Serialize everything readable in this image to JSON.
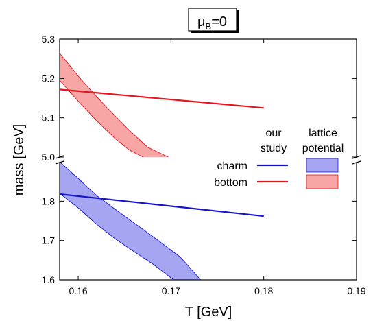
{
  "chart_data": {
    "type": "line",
    "title": "μ",
    "title_sub": "B",
    "title_suffix": "=0",
    "xlabel": "T [GeV]",
    "ylabel": "mass [GeV]",
    "xlim": [
      0.158,
      0.19
    ],
    "x_ticks": [
      0.16,
      0.17,
      0.18,
      0.19
    ],
    "x_tick_labels": [
      "0.16",
      "0.17",
      "0.18",
      "0.19"
    ],
    "upper_panel": {
      "ylim": [
        5.0,
        5.3
      ],
      "y_ticks": [
        5.0,
        5.1,
        5.2,
        5.3
      ],
      "y_tick_labels": [
        "5.0",
        "5.1",
        "5.2",
        "5.3"
      ]
    },
    "lower_panel": {
      "ylim": [
        1.6,
        1.9
      ],
      "y_ticks": [
        1.6,
        1.7,
        1.8
      ],
      "y_tick_labels": [
        "1.6",
        "1.7",
        "1.8"
      ]
    },
    "grid": false,
    "legend": {
      "col1_header": [
        "our",
        "study"
      ],
      "col2_header": [
        "lattice",
        "potential"
      ],
      "rows": [
        "charm",
        "bottom"
      ]
    },
    "series": [
      {
        "name": "bottom",
        "kind": "line",
        "panel": "upper",
        "color": "#e8141c",
        "x": [
          0.158,
          0.18
        ],
        "y": [
          5.172,
          5.125
        ]
      },
      {
        "name": "charm",
        "kind": "line",
        "panel": "lower",
        "color": "#1414cc",
        "x": [
          0.158,
          0.18
        ],
        "y": [
          1.818,
          1.762
        ]
      },
      {
        "name": "bottom",
        "kind": "band",
        "panel": "upper",
        "fill": "#f7a5a5",
        "stroke": "#e8141c",
        "x_upper": [
          0.158,
          0.1605,
          0.163,
          0.1655,
          0.1675,
          0.1697
        ],
        "y_upper": [
          5.264,
          5.192,
          5.128,
          5.068,
          5.025,
          5.0
        ],
        "x_lower": [
          0.158,
          0.16,
          0.162,
          0.164,
          0.1655,
          0.167
        ],
        "y_lower": [
          5.195,
          5.142,
          5.092,
          5.047,
          5.018,
          5.0
        ]
      },
      {
        "name": "charm",
        "kind": "band",
        "panel": "lower",
        "fill": "#a5a5f2",
        "stroke": "#1414cc",
        "x_upper": [
          0.158,
          0.16,
          0.162,
          0.165,
          0.168,
          0.171,
          0.1732
        ],
        "y_upper": [
          1.9,
          1.858,
          1.814,
          1.762,
          1.711,
          1.658,
          1.6
        ],
        "x_lower": [
          0.158,
          0.16,
          0.162,
          0.164,
          0.166,
          0.168,
          0.1703
        ],
        "y_lower": [
          1.82,
          1.783,
          1.741,
          1.704,
          1.672,
          1.641,
          1.6
        ]
      }
    ]
  }
}
